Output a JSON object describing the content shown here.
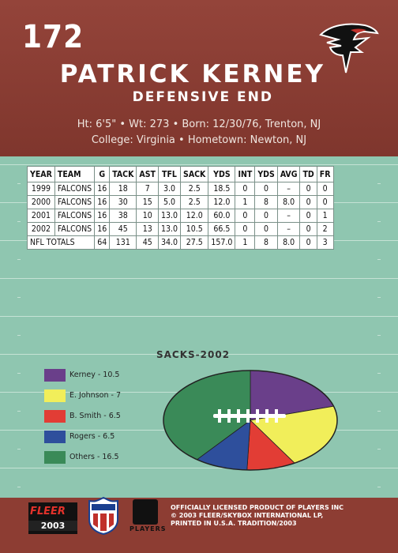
{
  "card": {
    "number": "172",
    "name": "PATRICK KERNEY",
    "position": "DEFENSIVE END",
    "bio_line1": "Ht: 6'5\"  •  Wt: 273  •  Born: 12/30/76, Trenton, NJ",
    "bio_line2": "College: Virginia  •  Hometown: Newton, NJ",
    "team_logo": "falcons-logo-icon"
  },
  "stats": {
    "headers": [
      "YEAR",
      "TEAM",
      "G",
      "TACK",
      "AST",
      "TFL",
      "SACK",
      "YDS",
      "INT",
      "YDS",
      "AVG",
      "TD",
      "FR"
    ],
    "rows": [
      [
        "1999",
        "FALCONS",
        "16",
        "18",
        "7",
        "3.0",
        "2.5",
        "18.5",
        "0",
        "0",
        "–",
        "0",
        "0"
      ],
      [
        "2000",
        "FALCONS",
        "16",
        "30",
        "15",
        "5.0",
        "2.5",
        "12.0",
        "1",
        "8",
        "8.0",
        "0",
        "0"
      ],
      [
        "2001",
        "FALCONS",
        "16",
        "38",
        "10",
        "13.0",
        "12.0",
        "60.0",
        "0",
        "0",
        "–",
        "0",
        "1"
      ],
      [
        "2002",
        "FALCONS",
        "16",
        "45",
        "13",
        "13.0",
        "10.5",
        "66.5",
        "0",
        "0",
        "–",
        "0",
        "2"
      ]
    ],
    "totals": [
      "NFL TOTALS",
      "64",
      "131",
      "45",
      "34.0",
      "27.5",
      "157.0",
      "1",
      "8",
      "8.0",
      "0",
      "3"
    ]
  },
  "chart_data": {
    "type": "pie",
    "title": "SACKS-2002",
    "legend_position": "left",
    "labels": [
      "Kerney - 10.5",
      "E. Johnson - 7",
      "B. Smith - 6.5",
      "Rogers - 6.5",
      "Others - 16.5"
    ],
    "categories": [
      "Kerney",
      "E. Johnson",
      "B. Smith",
      "Rogers",
      "Others"
    ],
    "values": [
      10.5,
      7,
      6.5,
      6.5,
      16.5
    ],
    "colors": [
      "#6a3f8a",
      "#f1ee5a",
      "#e23d35",
      "#2e4f9c",
      "#3a8a58"
    ]
  },
  "footer": {
    "brand": "FLEER",
    "year": "2003",
    "nfl_logo": "nfl-shield-icon",
    "players_logo": "players-inc-icon",
    "players_text": "PLAYERS",
    "legal1": "OFFICIALLY LICENSED PRODUCT OF PLAYERS INC",
    "legal2": "© 2003 FLEER/SKYBOX INTERNATIONAL LP,",
    "legal3": "PRINTED IN U.S.A. TRADITION/2003"
  }
}
